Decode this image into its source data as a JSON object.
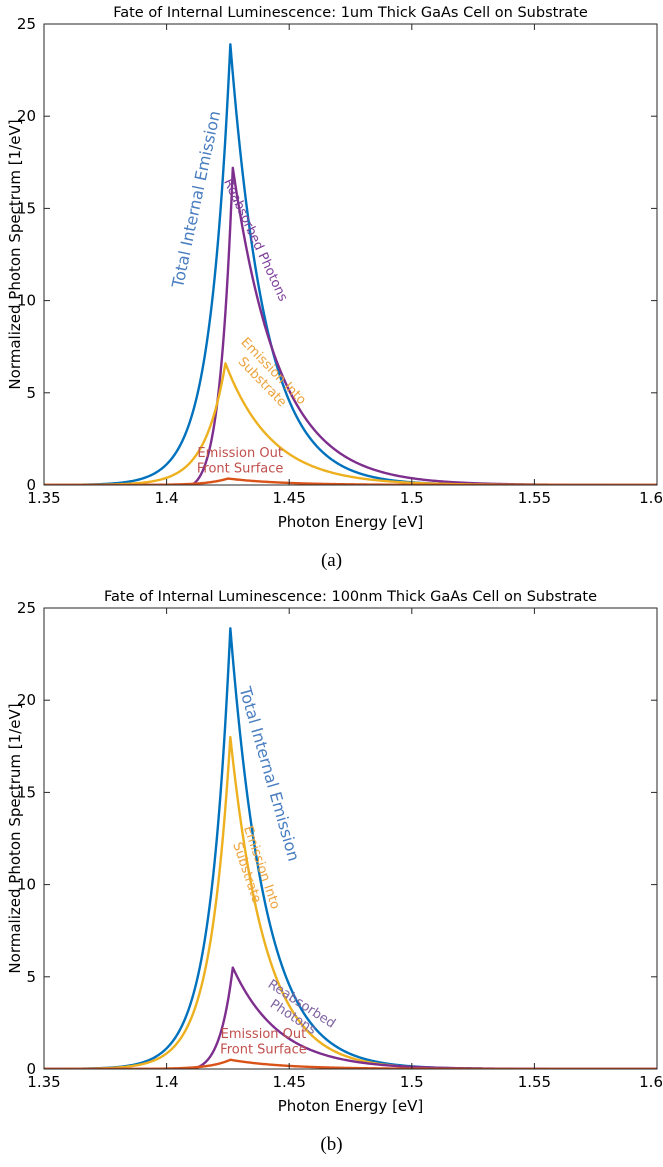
{
  "chart_data": [
    {
      "panel_caption": "(a)",
      "type": "line",
      "title": "Fate of Internal Luminescence: 1um Thick GaAs Cell on Substrate",
      "xlabel": "Photon Energy [eV]",
      "ylabel": "Normalized Photon Spectrum [1/eV]",
      "xlim": [
        1.35,
        1.6
      ],
      "ylim": [
        0,
        25
      ],
      "xticks": [
        1.35,
        1.4,
        1.45,
        1.5,
        1.55,
        1.6
      ],
      "xtick_labels": [
        "1.35",
        "1.4",
        "1.45",
        "1.5",
        "1.55",
        "1.6"
      ],
      "yticks": [
        0,
        5,
        10,
        15,
        20,
        25
      ],
      "ytick_labels": [
        "0",
        "5",
        "10",
        "15",
        "20",
        "25"
      ],
      "grid": false,
      "series": [
        {
          "name": "Total Internal Emission",
          "color": "#0072BD",
          "peak": [
            1.426,
            23.9
          ],
          "tau_left": 0.0085,
          "tau_right": 0.0145,
          "onset": null
        },
        {
          "name": "Reabsorbed Photons",
          "color": "#7E2F8E",
          "peak": [
            1.427,
            17.2
          ],
          "tau_left": 0.0085,
          "tau_right": 0.019,
          "onset": 1.41
        },
        {
          "name": "Emission Into Substrate",
          "color": "#EDB120",
          "peak": [
            1.424,
            6.6
          ],
          "tau_left": 0.0085,
          "tau_right": 0.019,
          "onset": null
        },
        {
          "name": "Emission Out Front Surface",
          "color": "#D95319",
          "peak": [
            1.425,
            0.35
          ],
          "tau_left": 0.0085,
          "tau_right": 0.022,
          "onset": null
        }
      ],
      "annotations": [
        {
          "text": "Total Internal Emission",
          "color": "#4A7EC0",
          "size": 16,
          "pos": [
            1.412,
            15.5
          ],
          "rotate": -78,
          "lines": [
            "Total Internal Emission"
          ]
        },
        {
          "text": "Reabsorbed Photons",
          "color": "#7E3F9B",
          "size": 13,
          "pos": [
            1.4365,
            13.3
          ],
          "rotate": 65,
          "lines": [
            "Reabsorbed Photons"
          ]
        },
        {
          "text": "Emission Into Substrate",
          "color": "#EDA33C",
          "size": 13,
          "pos": [
            1.4415,
            5.9
          ],
          "rotate": 46,
          "lines": [
            "Emission Into",
            "Substrate"
          ]
        },
        {
          "text": "Emission Out Front Surface",
          "color": "#C0504D",
          "size": 13,
          "pos": [
            1.43,
            1.35
          ],
          "rotate": 0,
          "lines": [
            "Emission Out",
            "Front Surface"
          ]
        }
      ]
    },
    {
      "panel_caption": "(b)",
      "type": "line",
      "title": "Fate of Internal Luminescence: 100nm Thick GaAs Cell on Substrate",
      "xlabel": "Photon Energy [eV]",
      "ylabel": "Normalized Photon Spectrum [1/eV]",
      "xlim": [
        1.35,
        1.6
      ],
      "ylim": [
        0,
        25
      ],
      "xticks": [
        1.35,
        1.4,
        1.45,
        1.5,
        1.55,
        1.6
      ],
      "xtick_labels": [
        "1.35",
        "1.4",
        "1.45",
        "1.5",
        "1.55",
        "1.6"
      ],
      "yticks": [
        0,
        5,
        10,
        15,
        20,
        25
      ],
      "ytick_labels": [
        "0",
        "5",
        "10",
        "15",
        "20",
        "25"
      ],
      "grid": false,
      "series": [
        {
          "name": "Total Internal Emission",
          "color": "#0072BD",
          "peak": [
            1.426,
            23.9
          ],
          "tau_left": 0.0085,
          "tau_right": 0.0145,
          "onset": null
        },
        {
          "name": "Emission Into Substrate",
          "color": "#EDB120",
          "peak": [
            1.426,
            18.0
          ],
          "tau_left": 0.0085,
          "tau_right": 0.0145,
          "onset": null
        },
        {
          "name": "Reabsorbed Photons",
          "color": "#7E2F8E",
          "peak": [
            1.427,
            5.5
          ],
          "tau_left": 0.0085,
          "tau_right": 0.019,
          "onset": 1.41
        },
        {
          "name": "Emission Out Front Surface",
          "color": "#D95319",
          "peak": [
            1.426,
            0.5
          ],
          "tau_left": 0.0085,
          "tau_right": 0.022,
          "onset": null
        }
      ],
      "annotations": [
        {
          "text": "Total Internal Emission",
          "color": "#4A7EC0",
          "size": 16,
          "pos": [
            1.442,
            16.0
          ],
          "rotate": 74,
          "lines": [
            "Total Internal Emission"
          ]
        },
        {
          "text": "Emission Into Substrate",
          "color": "#EDA33C",
          "size": 13,
          "pos": [
            1.436,
            10.8
          ],
          "rotate": 71,
          "lines": [
            "Emission Into",
            "Substrate"
          ]
        },
        {
          "text": "Reabsorbed Photons",
          "color": "#8064A2",
          "size": 13,
          "pos": [
            1.4535,
            3.2
          ],
          "rotate": 33,
          "lines": [
            "Reabsorbed",
            "Photons"
          ]
        },
        {
          "text": "Emission Out Front Surface",
          "color": "#C0504D",
          "size": 13,
          "pos": [
            1.4395,
            1.5
          ],
          "rotate": 0,
          "lines": [
            "Emission Out",
            "Front Surface"
          ]
        }
      ]
    }
  ]
}
